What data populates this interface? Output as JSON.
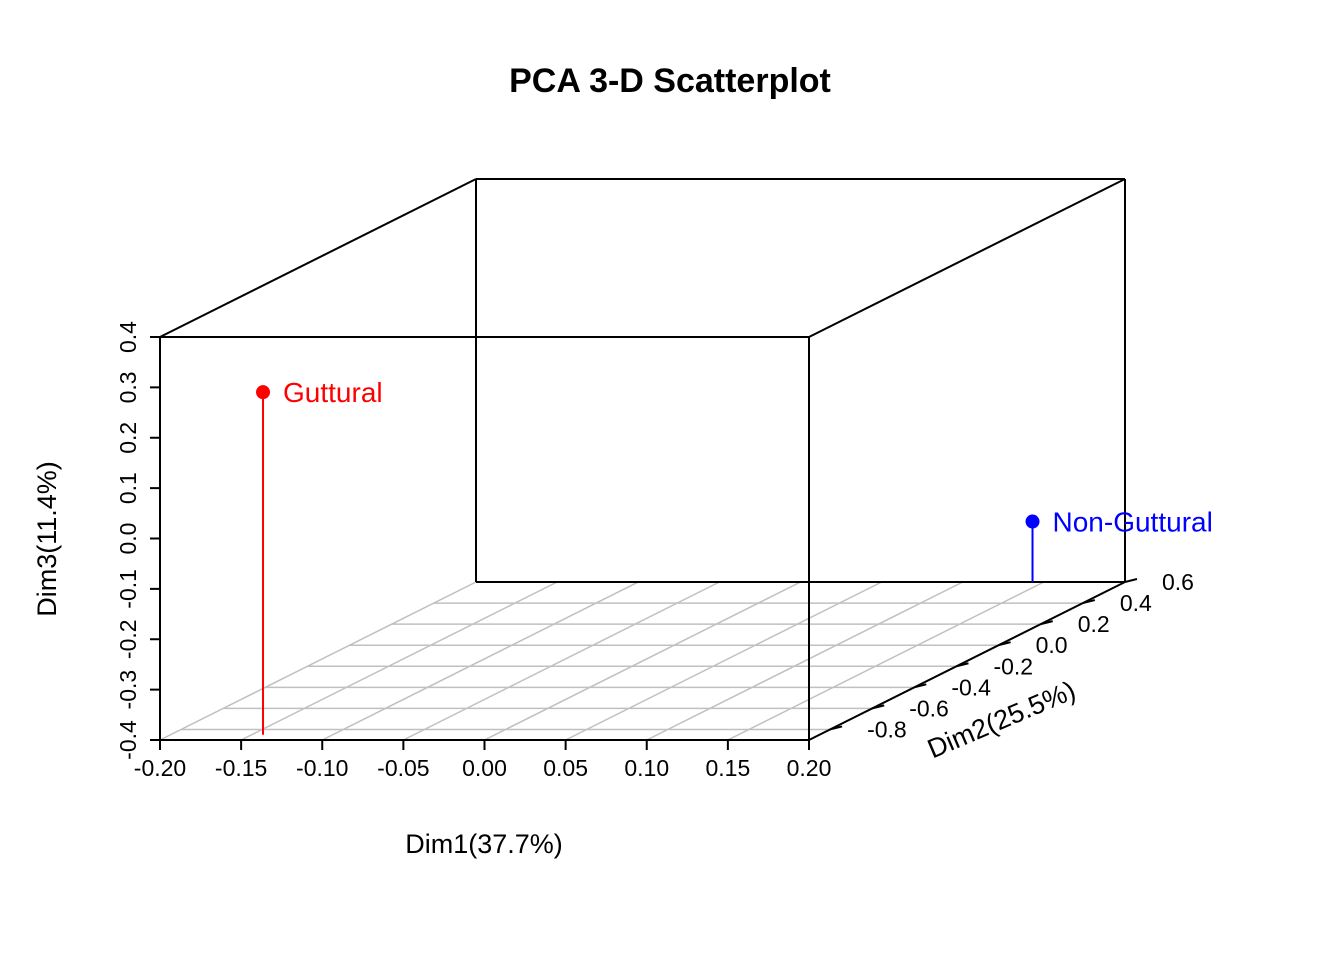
{
  "chart_data": {
    "type": "scatter",
    "title": "PCA 3-D Scatterplot",
    "xlabel": "Dim1(37.7%)",
    "ylabel": "Dim2(25.5%)",
    "zlabel": "Dim3(11.4%)",
    "xlim": [
      -0.2,
      0.2
    ],
    "ylim": [
      -0.9,
      0.6
    ],
    "zlim": [
      -0.4,
      0.4
    ],
    "x_ticks": [
      "-0.20",
      "-0.15",
      "-0.10",
      "-0.05",
      "0.00",
      "0.05",
      "0.10",
      "0.15",
      "0.20"
    ],
    "y_ticks": [
      "-0.8",
      "-0.6",
      "-0.4",
      "-0.2",
      "0.0",
      "0.2",
      "0.4",
      "0.6"
    ],
    "z_ticks": [
      "-0.4",
      "-0.3",
      "-0.2",
      "-0.1",
      "0.0",
      "0.1",
      "0.2",
      "0.3",
      "0.4"
    ],
    "grid": true,
    "points": [
      {
        "label": "Guttural",
        "x": -0.143,
        "y": -0.85,
        "z": 0.28,
        "color": "#ff0000"
      },
      {
        "label": "Non-Guttural",
        "x": 0.143,
        "y": 0.6,
        "z": -0.28,
        "color": "#0000ff"
      }
    ]
  }
}
